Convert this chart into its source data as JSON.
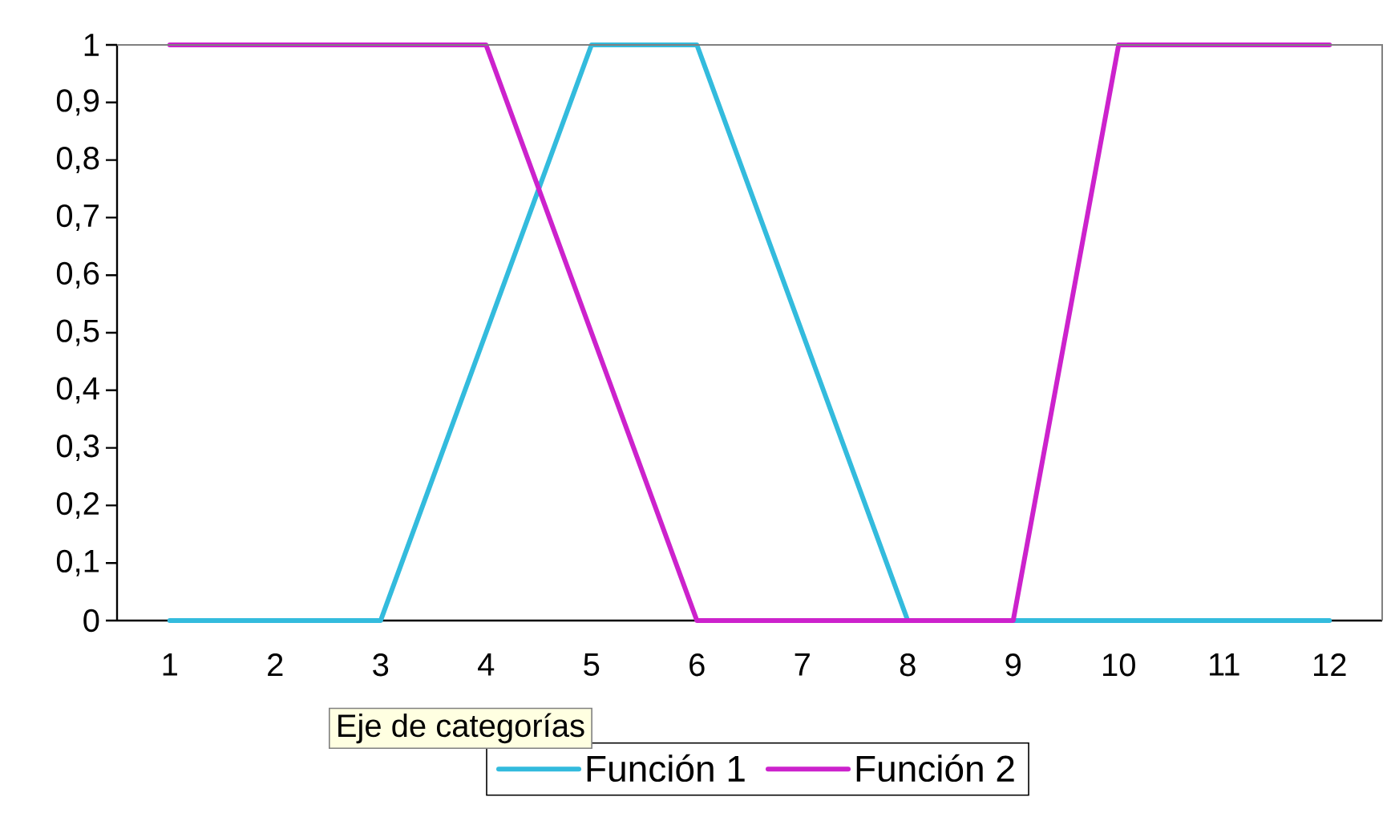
{
  "chart_data": {
    "type": "line",
    "categories": [
      "1",
      "2",
      "3",
      "4",
      "5",
      "6",
      "7",
      "8",
      "9",
      "10",
      "11",
      "12"
    ],
    "series": [
      {
        "name": "Función 1",
        "color": "#33bbdd",
        "values": [
          0,
          0,
          0,
          0.5,
          1,
          1,
          0.5,
          0,
          0,
          0,
          0,
          0
        ]
      },
      {
        "name": "Función 2",
        "color": "#cc22cc",
        "values": [
          1,
          1,
          1,
          1,
          0.5,
          0,
          0,
          0,
          0,
          1,
          1,
          1
        ]
      }
    ],
    "ylim": [
      0,
      1
    ],
    "yticks": [
      0,
      {
        "value": 0.1,
        "label": "0,1"
      },
      {
        "value": 0.2,
        "label": "0,2"
      },
      {
        "value": 0.3,
        "label": "0,3"
      },
      {
        "value": 0.4,
        "label": "0,4"
      },
      {
        "value": 0.5,
        "label": "0,5"
      },
      {
        "value": 0.6,
        "label": "0,6"
      },
      {
        "value": 0.7,
        "label": "0,7"
      },
      {
        "value": 0.8,
        "label": "0,8"
      },
      {
        "value": 0.9,
        "label": "0,9"
      },
      1
    ],
    "grid": false,
    "legend": "bottom",
    "marker": "none",
    "line_style": "solid",
    "annotations": [
      "Eje de categorías"
    ]
  }
}
